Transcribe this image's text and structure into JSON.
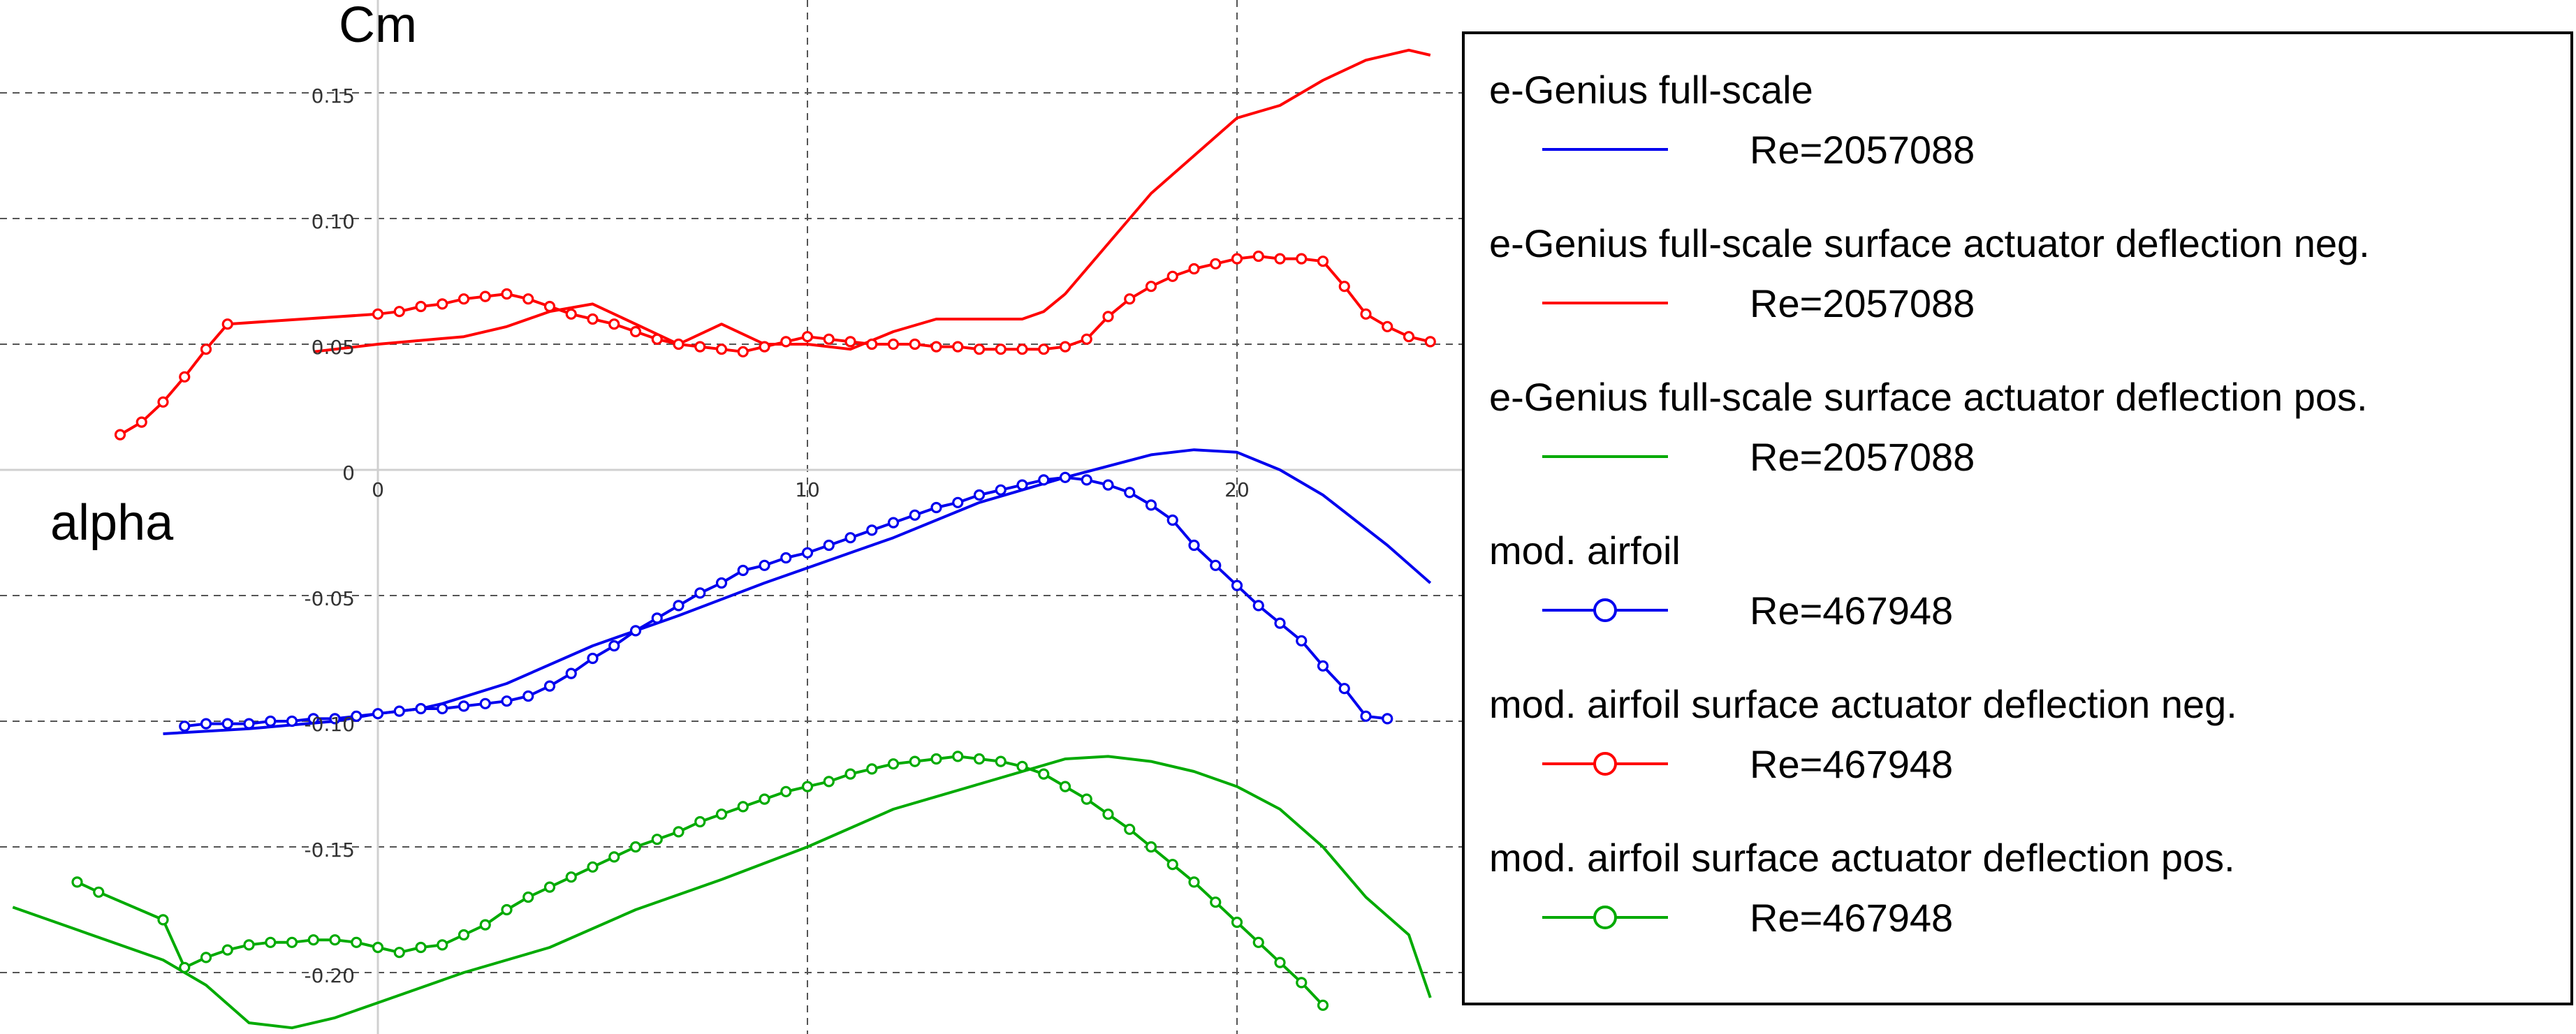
{
  "chart_data": {
    "type": "line",
    "title": "",
    "ylabel": "Cm",
    "xlabel": "alpha",
    "xlim": [
      -8.5,
      24.5
    ],
    "ylim": [
      -0.222,
      0.17
    ],
    "grid": true,
    "x_ticks": [
      0,
      10,
      20
    ],
    "y_ticks": [
      0.15,
      0.1,
      0.05,
      0,
      -0.05,
      -0.1,
      -0.15,
      -0.2
    ],
    "x_tick_labels": [
      "0",
      "10",
      "20"
    ],
    "y_tick_labels": [
      "0.15",
      "0.10",
      "0.05",
      "0",
      "-0.05",
      "-0.10",
      "-0.15",
      "-0.20"
    ],
    "legend_position": "right",
    "series": [
      {
        "name": "e-Genius full-scale",
        "re_label": "Re=2057088",
        "color": "#0000ee",
        "marker": "none",
        "x": [
          -5,
          -3,
          -1,
          0,
          1,
          1.5,
          3,
          5,
          7,
          9,
          11,
          12,
          14,
          16,
          18,
          19,
          20,
          21,
          22,
          23.5,
          24.5
        ],
        "y": [
          -0.105,
          -0.103,
          -0.1,
          -0.097,
          -0.095,
          -0.093,
          -0.085,
          -0.07,
          -0.058,
          -0.045,
          -0.033,
          -0.027,
          -0.013,
          -0.003,
          0.006,
          0.008,
          0.007,
          0.0,
          -0.01,
          -0.03,
          -0.045
        ]
      },
      {
        "name": "e-Genius full-scale surface actuator deflection neg.",
        "re_label": "Re=2057088",
        "color": "#ff0000",
        "marker": "none",
        "x": [
          -1.5,
          0,
          2,
          3,
          4,
          5,
          7,
          8,
          9,
          10,
          11,
          12,
          13,
          14,
          15,
          15.5,
          16,
          17,
          17.5,
          18,
          19,
          20,
          21,
          22,
          23,
          24,
          24.5
        ],
        "y": [
          0.047,
          0.05,
          0.053,
          0.057,
          0.063,
          0.066,
          0.05,
          0.058,
          0.05,
          0.05,
          0.048,
          0.055,
          0.06,
          0.06,
          0.06,
          0.063,
          0.07,
          0.09,
          0.1,
          0.11,
          0.125,
          0.14,
          0.145,
          0.155,
          0.163,
          0.167,
          0.165
        ]
      },
      {
        "name": "e-Genius full-scale surface actuator deflection pos.",
        "re_label": "Re=2057088",
        "color": "#00aa00",
        "marker": "none",
        "x": [
          -8.5,
          -7,
          -5,
          -4,
          -3,
          -2,
          -1,
          0,
          2,
          4,
          6,
          8,
          10,
          12,
          14,
          16,
          17,
          18,
          19,
          20,
          21,
          22,
          23,
          24,
          24.5
        ],
        "y": [
          -0.174,
          -0.183,
          -0.195,
          -0.205,
          -0.22,
          -0.222,
          -0.218,
          -0.212,
          -0.2,
          -0.19,
          -0.175,
          -0.163,
          -0.15,
          -0.135,
          -0.125,
          -0.115,
          -0.114,
          -0.116,
          -0.12,
          -0.126,
          -0.135,
          -0.15,
          -0.17,
          -0.185,
          -0.21
        ]
      },
      {
        "name": "mod. airfoil",
        "re_label": "Re=467948",
        "color": "#0000ee",
        "marker": "circle",
        "x": [
          -4.5,
          -4,
          -3.5,
          -3,
          -2.5,
          -2,
          -1.5,
          -1,
          -0.5,
          0,
          0.5,
          1,
          1.5,
          2,
          2.5,
          3,
          3.5,
          4,
          4.5,
          5,
          5.5,
          6,
          6.5,
          7,
          7.5,
          8,
          8.5,
          9,
          9.5,
          10,
          10.5,
          11,
          11.5,
          12,
          12.5,
          13,
          13.5,
          14,
          14.5,
          15,
          15.5,
          16,
          16.5,
          17,
          17.5,
          18,
          18.5,
          19,
          19.5,
          20,
          20.5,
          21,
          21.5,
          22,
          22.5,
          23,
          23.5
        ],
        "y": [
          -0.102,
          -0.101,
          -0.101,
          -0.101,
          -0.1,
          -0.1,
          -0.099,
          -0.099,
          -0.098,
          -0.097,
          -0.096,
          -0.095,
          -0.095,
          -0.094,
          -0.093,
          -0.092,
          -0.09,
          -0.086,
          -0.081,
          -0.075,
          -0.07,
          -0.064,
          -0.059,
          -0.054,
          -0.049,
          -0.045,
          -0.04,
          -0.038,
          -0.035,
          -0.033,
          -0.03,
          -0.027,
          -0.024,
          -0.021,
          -0.018,
          -0.015,
          -0.013,
          -0.01,
          -0.008,
          -0.006,
          -0.004,
          -0.003,
          -0.004,
          -0.006,
          -0.009,
          -0.014,
          -0.02,
          -0.03,
          -0.038,
          -0.046,
          -0.054,
          -0.061,
          -0.068,
          -0.078,
          -0.087,
          -0.098,
          -0.099
        ]
      },
      {
        "name": "mod. airfoil surface actuator deflection neg.",
        "re_label": "Re=467948",
        "color": "#ff0000",
        "marker": "circle",
        "x": [
          -6,
          -5.5,
          -5,
          -4.5,
          -4,
          -3.5,
          0,
          0.5,
          1,
          1.5,
          2,
          2.5,
          3,
          3.5,
          4,
          4.5,
          5,
          5.5,
          6,
          6.5,
          7,
          7.5,
          8,
          8.5,
          9,
          9.5,
          10,
          10.5,
          11,
          11.5,
          12,
          12.5,
          13,
          13.5,
          14,
          14.5,
          15,
          15.5,
          16,
          16.5,
          17,
          17.5,
          18,
          18.5,
          19,
          19.5,
          20,
          20.5,
          21,
          21.5,
          22,
          22.5,
          23,
          23.5,
          24,
          24.5
        ],
        "y": [
          0.014,
          0.019,
          0.027,
          0.037,
          0.048,
          0.058,
          0.062,
          0.063,
          0.065,
          0.066,
          0.068,
          0.069,
          0.07,
          0.068,
          0.065,
          0.062,
          0.06,
          0.058,
          0.055,
          0.052,
          0.05,
          0.049,
          0.048,
          0.047,
          0.049,
          0.051,
          0.053,
          0.052,
          0.051,
          0.05,
          0.05,
          0.05,
          0.049,
          0.049,
          0.048,
          0.048,
          0.048,
          0.048,
          0.049,
          0.052,
          0.061,
          0.068,
          0.073,
          0.077,
          0.08,
          0.082,
          0.084,
          0.085,
          0.084,
          0.084,
          0.083,
          0.073,
          0.062,
          0.057,
          0.053,
          0.051
        ]
      },
      {
        "name": "mod. airfoil surface actuator deflection pos.",
        "re_label": "Re=467948",
        "color": "#00aa00",
        "marker": "circle",
        "x": [
          -7,
          -6.5,
          -5,
          -4.5,
          -4,
          -3.5,
          -3,
          -2.5,
          -2,
          -1.5,
          -1,
          -0.5,
          0,
          0.5,
          1,
          1.5,
          2,
          2.5,
          3,
          3.5,
          4,
          4.5,
          5,
          5.5,
          6,
          6.5,
          7,
          7.5,
          8,
          8.5,
          9,
          9.5,
          10,
          10.5,
          11,
          11.5,
          12,
          12.5,
          13,
          13.5,
          14,
          14.5,
          15,
          15.5,
          16,
          16.5,
          17,
          17.5,
          18,
          18.5,
          19,
          19.5,
          20,
          20.5,
          21,
          21.5,
          22
        ],
        "y": [
          -0.164,
          -0.168,
          -0.179,
          -0.198,
          -0.194,
          -0.191,
          -0.189,
          -0.188,
          -0.188,
          -0.187,
          -0.187,
          -0.188,
          -0.19,
          -0.192,
          -0.19,
          -0.189,
          -0.185,
          -0.181,
          -0.175,
          -0.17,
          -0.166,
          -0.162,
          -0.158,
          -0.154,
          -0.15,
          -0.147,
          -0.144,
          -0.14,
          -0.137,
          -0.134,
          -0.131,
          -0.128,
          -0.126,
          -0.124,
          -0.121,
          -0.119,
          -0.117,
          -0.116,
          -0.115,
          -0.114,
          -0.115,
          -0.116,
          -0.118,
          -0.121,
          -0.126,
          -0.131,
          -0.137,
          -0.143,
          -0.15,
          -0.157,
          -0.164,
          -0.172,
          -0.18,
          -0.188,
          -0.196,
          -0.204,
          -0.213
        ]
      }
    ]
  }
}
